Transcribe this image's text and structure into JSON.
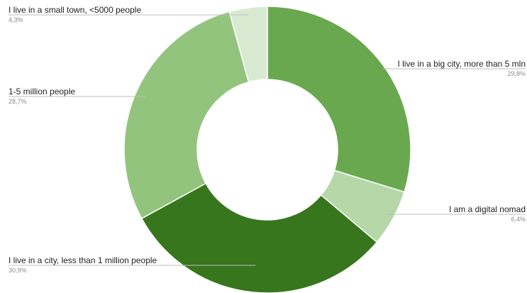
{
  "chart_data": {
    "type": "pie",
    "donut": true,
    "legend": "none",
    "slices": [
      {
        "label": "I live in a big city, more than 5 mln",
        "value": 29.8,
        "percent_label": "29,8%",
        "color": "#6aa84f"
      },
      {
        "label": "I am a digital nomad",
        "value": 6.4,
        "percent_label": "6,4%",
        "color": "#b6d7a8"
      },
      {
        "label": "I live in a city, less than 1 million people",
        "value": 30.9,
        "percent_label": "30,9%",
        "color": "#38761d"
      },
      {
        "label": "1-5 million people",
        "value": 28.7,
        "percent_label": "28,7%",
        "color": "#93c47d"
      },
      {
        "label": "I live in a small town, <5000 people",
        "value": 4.3,
        "percent_label": "4,3%",
        "color": "#d9ead3"
      }
    ]
  }
}
